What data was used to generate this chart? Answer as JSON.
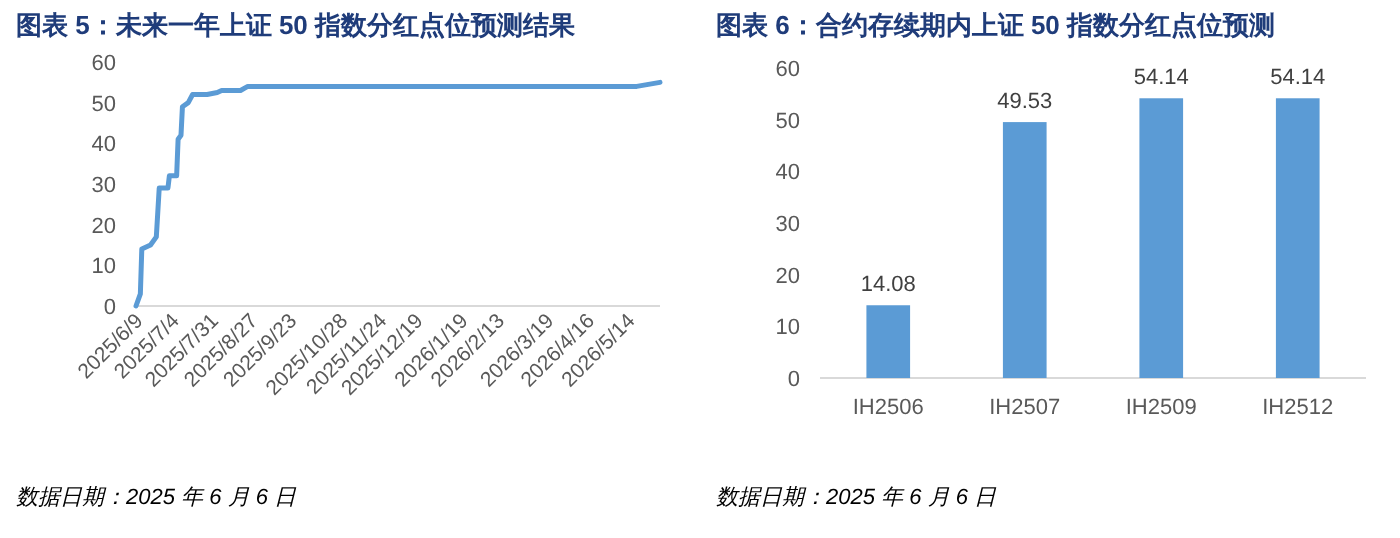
{
  "chart_data": [
    {
      "type": "line",
      "title": "图表 5：未来一年上证 50 指数分红点位预测结果",
      "annotations": [
        "数据日期：2025 年 6 月 6 日"
      ],
      "x": [
        "2025-06-09",
        "2025-06-12",
        "2025-06-13",
        "2025-06-19",
        "2025-06-23",
        "2025-06-25",
        "2025-07-01",
        "2025-07-02",
        "2025-07-07",
        "2025-07-08",
        "2025-07-10",
        "2025-07-11",
        "2025-07-15",
        "2025-07-18",
        "2025-07-28",
        "2025-08-04",
        "2025-08-07",
        "2025-08-20",
        "2025-08-25",
        "2026-05-20",
        "2026-05-28",
        "2026-06-05"
      ],
      "series": [
        {
          "color": "#5b9bd5",
          "values": [
            0,
            3,
            14,
            15,
            17,
            29,
            29,
            32,
            32,
            41,
            42,
            49,
            50,
            52,
            52,
            52.5,
            53,
            53,
            54,
            54,
            54.5,
            55
          ]
        }
      ],
      "xlim": [
        "2025-06-09",
        "2026-06-05"
      ],
      "xticks": [
        {
          "value": "2025-06-09",
          "label": "2025/6/9"
        },
        {
          "value": "2025-07-04",
          "label": "2025/7/4"
        },
        {
          "value": "2025-07-31",
          "label": "2025/7/31"
        },
        {
          "value": "2025-08-27",
          "label": "2025/8/27"
        },
        {
          "value": "2025-09-23",
          "label": "2025/9/23"
        },
        {
          "value": "2025-10-28",
          "label": "2025/10/28"
        },
        {
          "value": "2025-11-24",
          "label": "2025/11/24"
        },
        {
          "value": "2025-12-19",
          "label": "2025/12/19"
        },
        {
          "value": "2026-01-19",
          "label": "2026/1/19"
        },
        {
          "value": "2026-02-13",
          "label": "2026/2/13"
        },
        {
          "value": "2026-03-19",
          "label": "2026/3/19"
        },
        {
          "value": "2026-04-16",
          "label": "2026/4/16"
        },
        {
          "value": "2026-05-14",
          "label": "2026/5/14"
        }
      ],
      "ylim": [
        0,
        60
      ],
      "yticks": [
        0,
        10,
        20,
        30,
        40,
        50,
        60
      ],
      "grid": false
    },
    {
      "type": "bar",
      "title": "图表 6：合约存续期内上证 50 指数分红点位预测",
      "annotations": [
        "数据日期：2025 年 6 月 6 日"
      ],
      "categories": [
        "IH2506",
        "IH2507",
        "IH2509",
        "IH2512"
      ],
      "series": [
        {
          "color": "#5b9bd5",
          "values": [
            14.08,
            49.53,
            54.14,
            54.14
          ]
        }
      ],
      "data_labels": true,
      "ylim": [
        0,
        60
      ],
      "yticks": [
        0,
        10,
        20,
        30,
        40,
        50,
        60
      ],
      "grid": false
    }
  ]
}
